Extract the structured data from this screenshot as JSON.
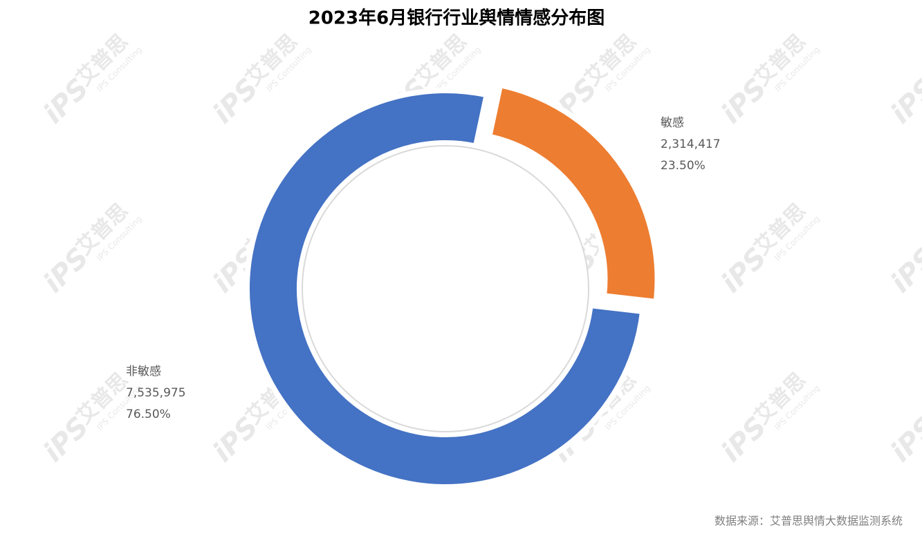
{
  "chart_data": {
    "type": "donut",
    "title": "2023年6月银行行业舆情情感分布图",
    "categories": [
      "敏感",
      "非敏感"
    ],
    "values": [
      2314417,
      7535975
    ],
    "value_labels": [
      "2,314,417",
      "7,535,975"
    ],
    "percentages": [
      23.5,
      76.5
    ],
    "percentage_labels": [
      "23.50%",
      "76.50%"
    ],
    "colors": [
      "#ed7d31",
      "#4472c4"
    ],
    "source": "数据来源：艾普思舆情大数据监测系统",
    "watermark": "艾普思",
    "watermark_logo": "iPS",
    "watermark_sub": "IPS Consulting"
  }
}
